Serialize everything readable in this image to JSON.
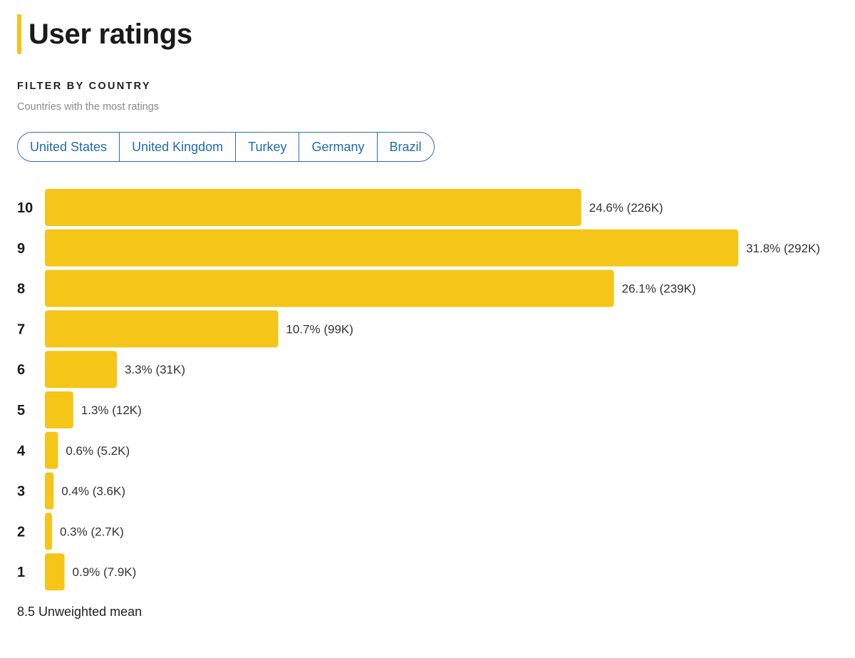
{
  "header": {
    "title": "User ratings",
    "accent_color": "#f5c518"
  },
  "filter": {
    "label": "FILTER BY COUNTRY",
    "subtitle": "Countries with the most ratings",
    "countries": [
      "United States",
      "United Kingdom",
      "Turkey",
      "Germany",
      "Brazil"
    ]
  },
  "chart_data": {
    "type": "bar",
    "orientation": "horizontal",
    "bar_color": "#f5c518",
    "categories": [
      "10",
      "9",
      "8",
      "7",
      "6",
      "5",
      "4",
      "3",
      "2",
      "1"
    ],
    "values": [
      24.6,
      31.8,
      26.1,
      10.7,
      3.3,
      1.3,
      0.6,
      0.4,
      0.3,
      0.9
    ],
    "counts": [
      "226K",
      "292K",
      "239K",
      "99K",
      "31K",
      "12K",
      "5.2K",
      "3.6K",
      "2.7K",
      "7.9K"
    ],
    "data_labels": [
      "24.6% (226K)",
      "31.8% (292K)",
      "26.1% (239K)",
      "10.7% (99K)",
      "3.3% (31K)",
      "1.3% (12K)",
      "0.6% (5.2K)",
      "0.4% (3.6K)",
      "0.3% (2.7K)",
      "0.9% (7.9K)"
    ],
    "unit": "%"
  },
  "footer": {
    "mean_text": "8.5 Unweighted mean"
  }
}
